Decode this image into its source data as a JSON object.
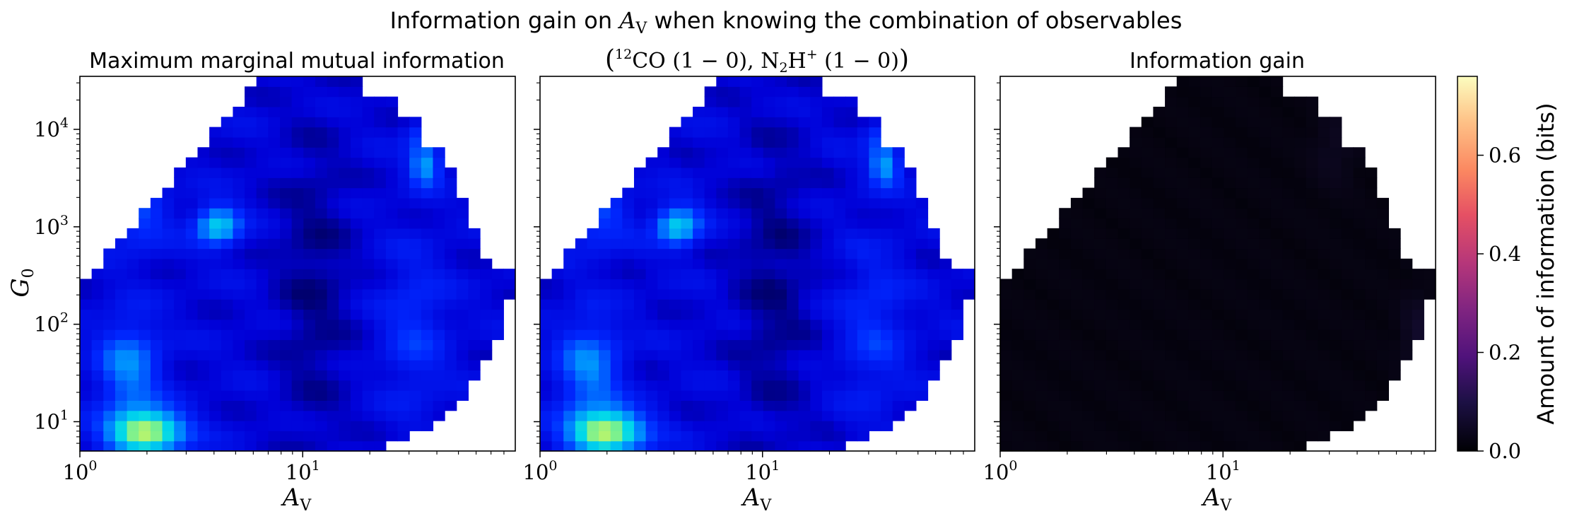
{
  "suptitle": {
    "prefix": "Information gain on ",
    "var": "A",
    "var_sub": "V",
    "suffix": " when knowing the combination of observables"
  },
  "panel_titles": {
    "left": "Maximum marginal mutual information",
    "middle": {
      "iso": "12",
      "mol1": "CO",
      "trans1": "(1 − 0)",
      "sep": ", ",
      "mol2_a": "N",
      "mol2_sub": "2",
      "mol2_b": "H",
      "mol2_sup": "+",
      "trans2": "(1 − 0)"
    },
    "right": "Information gain"
  },
  "axes": {
    "xlabel_var": "A",
    "xlabel_sub": "V",
    "ylabel_var": "G",
    "ylabel_sub": "0",
    "x_ticks": [
      {
        "base": "10",
        "exp": "0"
      },
      {
        "base": "10",
        "exp": "1"
      }
    ],
    "y_ticks": [
      {
        "base": "10",
        "exp": "1"
      },
      {
        "base": "10",
        "exp": "2"
      },
      {
        "base": "10",
        "exp": "3"
      },
      {
        "base": "10",
        "exp": "4"
      }
    ]
  },
  "colorbar": {
    "label": "Amount of information (bits)",
    "ticks": [
      "0.0",
      "0.2",
      "0.4",
      "0.6"
    ],
    "range": [
      0,
      0.76
    ],
    "colormap": "magma"
  },
  "chart_data": {
    "type": "heatmap",
    "x_scale": "log",
    "y_scale": "log",
    "xlim": [
      1,
      90
    ],
    "ylim": [
      5,
      35000
    ],
    "x_range_log10": [
      0,
      1.954
    ],
    "y_range_log10": [
      0.699,
      4.544
    ],
    "grid_columns": 37,
    "grid_rows": 37,
    "panels": [
      {
        "title": "Maximum marginal mutual information",
        "colormap": "jet (blue–cyan–yellow)",
        "value_range": [
          0,
          0.76
        ],
        "description_features": "hotspots near A_V≈2, G0≈8 (highest, yellow-green), A_V≈4, G0≈1000 (cyan), A_V≈30–40, G0≈5000 (cyan); low (dark blue) band around A_V≈7–15"
      },
      {
        "title": "(12CO(1-0), N2H+(1-0))",
        "colormap": "jet (blue–cyan–yellow)",
        "value_range": [
          0,
          0.76
        ],
        "description_features": "nearly identical to left panel"
      },
      {
        "title": "Information gain",
        "colormap": "magma",
        "value_range": [
          0,
          0.76
        ],
        "description_features": "near zero everywhere; faint purple at A_V≈80, G0≈500 (~0.2) and A_V≈70, G0≈25 (~0.15)"
      }
    ]
  }
}
